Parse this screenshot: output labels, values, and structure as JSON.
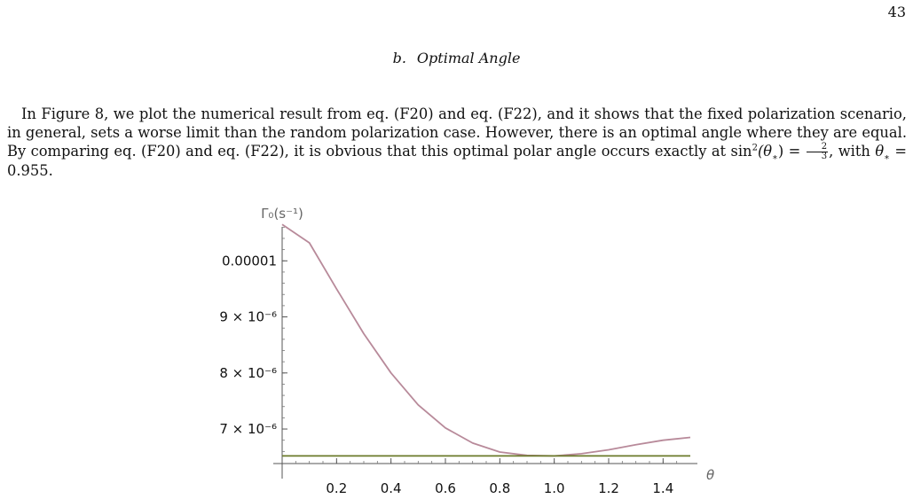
{
  "page": {
    "number": "43"
  },
  "section": {
    "label": "b.",
    "title": "Optimal Angle"
  },
  "paragraph": {
    "part1": "In Figure 8, we plot the numerical result from eq. (F20) and eq. (F22), and it shows that the fixed polarization scenario, in general, sets a worse limit than the random polarization case. However, there is an optimal angle where they are equal. By comparing eq. (F20) and eq. (F22), it is obvious that this optimal polar angle occurs exactly at ",
    "sin": "sin",
    "sin_power": "2",
    "theta_star_open": "(θ",
    "star": "∗",
    "close_eq": ") = ",
    "frac_num": "2",
    "frac_den": "3",
    "with_text": ", with ",
    "theta": "θ",
    "eq_value": " = 0.955."
  },
  "chart_data": {
    "type": "line",
    "title": "",
    "ylabel": "Γ₀(s⁻¹)",
    "xlabel": "θ",
    "xlim": [
      0.0,
      1.5
    ],
    "ylim": [
      6.4e-06,
      1.07e-05
    ],
    "x_ticks": [
      {
        "value": 0.2,
        "label": "0.2"
      },
      {
        "value": 0.4,
        "label": "0.4"
      },
      {
        "value": 0.6,
        "label": "0.6"
      },
      {
        "value": 0.8,
        "label": "0.8"
      },
      {
        "value": 1.0,
        "label": "1.0"
      },
      {
        "value": 1.2,
        "label": "1.2"
      },
      {
        "value": 1.4,
        "label": "1.4"
      }
    ],
    "y_ticks": [
      {
        "value": 1e-05,
        "label": "0.00001"
      },
      {
        "value": 9e-06,
        "label": "9 × 10⁻⁶"
      },
      {
        "value": 8e-06,
        "label": "8 × 10⁻⁶"
      },
      {
        "value": 7e-06,
        "label": "7 × 10⁻⁶"
      }
    ],
    "series": [
      {
        "color": "#b88a9a",
        "x": [
          0.0,
          0.1,
          0.2,
          0.3,
          0.4,
          0.5,
          0.6,
          0.7,
          0.8,
          0.9,
          1.0,
          1.1,
          1.2,
          1.3,
          1.4,
          1.5
        ],
        "y": [
          1.065e-05,
          1.032e-05,
          9.5e-06,
          8.7e-06,
          8e-06,
          7.43e-06,
          7.02e-06,
          6.75e-06,
          6.59e-06,
          6.53e-06,
          6.52e-06,
          6.56e-06,
          6.63e-06,
          6.72e-06,
          6.8e-06,
          6.85e-06
        ]
      },
      {
        "color": "#6b7a2a",
        "x": [
          0.0,
          1.5
        ],
        "y": [
          6.52e-06,
          6.52e-06
        ]
      }
    ]
  }
}
